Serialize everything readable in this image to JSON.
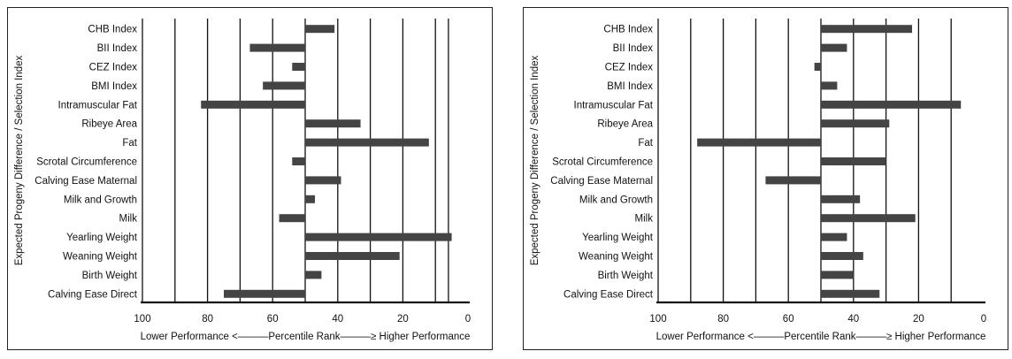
{
  "chart_data": [
    {
      "type": "bar",
      "orientation": "horizontal",
      "baseline": 50,
      "categories": [
        "CHB Index",
        "BII Index",
        "CEZ Index",
        "BMI Index",
        "Intramuscular Fat",
        "Ribeye Area",
        "Fat",
        "Scrotal Circumference",
        "Calving Ease Maternal",
        "Milk and Growth",
        "Milk",
        "Yearling Weight",
        "Weaning Weight",
        "Birth Weight",
        "Calving Ease Direct"
      ],
      "values": [
        41,
        67,
        54,
        63,
        82,
        33,
        12,
        54,
        39,
        47,
        58,
        5,
        21,
        45,
        75
      ],
      "xlim": [
        100,
        0
      ],
      "xticks": [
        "100",
        "80",
        "60",
        "40",
        "20",
        "0"
      ],
      "gridlines": [
        90,
        80,
        70,
        60,
        50,
        40,
        30,
        20,
        10,
        6
      ],
      "grid": true,
      "xlabel": "Lower Performance <———Percentile Rank———≥ Higher Performance",
      "ylabel": "Expected Progeny Difference / Selection Index"
    },
    {
      "type": "bar",
      "orientation": "horizontal",
      "baseline": 50,
      "categories": [
        "CHB Index",
        "BII Index",
        "CEZ Index",
        "BMI Index",
        "Intramuscular Fat",
        "Ribeye Area",
        "Fat",
        "Scrotal Circumference",
        "Calving Ease Maternal",
        "Milk and Growth",
        "Milk",
        "Yearling Weight",
        "Weaning Weight",
        "Birth Weight",
        "Calving Ease Direct"
      ],
      "values": [
        22,
        42,
        52,
        45,
        7,
        29,
        88,
        30,
        67,
        38,
        21,
        42,
        37,
        40,
        32
      ],
      "xlim": [
        100,
        0
      ],
      "xticks": [
        "100",
        "80",
        "60",
        "40",
        "20",
        "0"
      ],
      "gridlines": [
        90,
        80,
        70,
        60,
        50,
        40,
        30,
        20,
        10
      ],
      "grid": true,
      "xlabel": "Lower Performance <———Percentile Rank———≥ Higher Performance",
      "ylabel": "Expected Progeny Difference / Selection Index"
    }
  ],
  "colors": {
    "bar": "#444444",
    "grid": "#111111",
    "axis": "#111111"
  }
}
